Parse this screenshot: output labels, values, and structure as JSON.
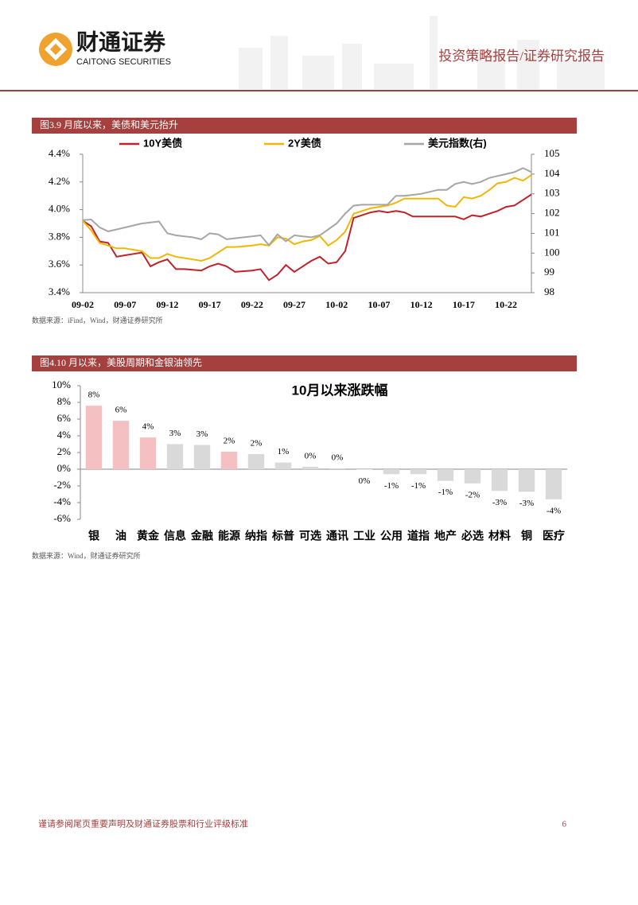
{
  "header": {
    "logo_cn": "财通证券",
    "logo_en": "CAITONG SECURITIES",
    "report_type": "投资策略报告/证券研究报告"
  },
  "figures": [
    {
      "caption": "图3.9 月底以来，美债和美元抬升",
      "source": "数据来源：iFind，Wind，财通证券研究所"
    },
    {
      "caption": "图4.10 月以来，美股周期和金银油领先",
      "source": "数据来源：Wind，财通证券研究所"
    }
  ],
  "chart_data": [
    {
      "type": "line",
      "categories": [
        "09-02",
        null,
        null,
        null,
        null,
        "09-07",
        null,
        null,
        null,
        null,
        "09-12",
        null,
        null,
        null,
        null,
        "09-17",
        null,
        null,
        null,
        null,
        "09-22",
        null,
        null,
        null,
        null,
        "09-27",
        null,
        null,
        null,
        null,
        "10-02",
        null,
        null,
        null,
        null,
        "10-07",
        null,
        null,
        null,
        null,
        "10-12",
        null,
        null,
        null,
        null,
        "10-17",
        null,
        null,
        null,
        null,
        "10-22",
        null,
        null,
        null
      ],
      "series": [
        {
          "name": "10Y美债",
          "color": "#c0222a",
          "values": [
            3.92,
            3.88,
            3.77,
            3.76,
            3.66,
            3.67,
            3.68,
            3.69,
            3.59,
            3.62,
            3.64,
            3.57,
            3.57,
            3.565,
            3.56,
            3.59,
            3.61,
            3.59,
            3.55,
            3.555,
            3.56,
            3.57,
            3.49,
            3.53,
            3.6,
            3.55,
            3.59,
            3.63,
            3.66,
            3.61,
            3.62,
            3.7,
            3.94,
            3.96,
            3.98,
            3.99,
            3.98,
            3.99,
            3.98,
            3.95,
            3.95,
            3.95,
            3.95,
            3.95,
            3.95,
            3.93,
            3.96,
            3.95,
            3.97,
            3.99,
            4.02,
            4.03,
            4.07,
            4.11
          ]
        },
        {
          "name": "2Y美债",
          "color": "#f2b705",
          "values": [
            3.92,
            3.85,
            3.76,
            3.74,
            3.72,
            3.72,
            3.71,
            3.7,
            3.65,
            3.65,
            3.68,
            3.66,
            3.65,
            3.64,
            3.63,
            3.65,
            3.69,
            3.73,
            3.73,
            3.735,
            3.74,
            3.75,
            3.74,
            3.8,
            3.79,
            3.75,
            3.77,
            3.78,
            3.81,
            3.74,
            3.78,
            3.84,
            3.97,
            3.99,
            4.01,
            4.02,
            4.03,
            4.05,
            4.08,
            4.08,
            4.08,
            4.08,
            4.08,
            4.03,
            4.02,
            4.09,
            4.08,
            4.1,
            4.14,
            4.19,
            4.2,
            4.23,
            4.21,
            4.25
          ]
        },
        {
          "name": "美元指数(右)",
          "color": "#a6a6a6",
          "axis": "y2",
          "values": [
            101.67,
            101.7,
            101.3,
            101.1,
            101.2,
            101.3,
            101.4,
            101.5,
            101.55,
            101.6,
            101.0,
            100.9,
            100.85,
            100.8,
            100.7,
            101.0,
            100.95,
            100.7,
            100.75,
            100.8,
            100.85,
            100.9,
            100.4,
            100.95,
            100.6,
            100.9,
            100.85,
            100.8,
            100.9,
            101.2,
            101.5,
            102.0,
            102.4,
            102.45,
            102.45,
            102.45,
            102.45,
            102.9,
            102.9,
            102.95,
            103.0,
            103.1,
            103.2,
            103.2,
            103.5,
            103.6,
            103.5,
            103.6,
            103.8,
            103.9,
            104.0,
            104.1,
            104.3,
            104.1
          ]
        }
      ],
      "ylim": [
        3.4,
        4.4
      ],
      "yticks": [
        {
          "value": 3.4,
          "label": "3.4%"
        },
        {
          "value": 3.6,
          "label": "3.6%"
        },
        {
          "value": 3.8,
          "label": "3.8%"
        },
        {
          "value": 4.0,
          "label": "4.0%"
        },
        {
          "value": 4.2,
          "label": "4.2%"
        },
        {
          "value": 4.4,
          "label": "4.4%"
        }
      ],
      "y2lim": [
        98,
        105
      ],
      "y2ticks": [
        98,
        99,
        100,
        101,
        102,
        103,
        104,
        105
      ]
    },
    {
      "type": "bar",
      "title": "10月以来涨跌幅",
      "categories": [
        "银",
        "油",
        "黄金",
        "信息",
        "金融",
        "能源",
        "纳指",
        "标普",
        "可选",
        "通讯",
        "工业",
        "公用",
        "道指",
        "地产",
        "必选",
        "材料",
        "铜",
        "医疗"
      ],
      "values": [
        7.6,
        5.8,
        3.8,
        3.0,
        2.9,
        2.1,
        1.8,
        0.8,
        0.3,
        0.1,
        -0.05,
        -0.6,
        -0.6,
        -1.4,
        -1.7,
        -2.6,
        -2.7,
        -3.6
      ],
      "value_labels": [
        "8%",
        "6%",
        "4%",
        "3%",
        "3%",
        "2%",
        "2%",
        "1%",
        "0%",
        "0%",
        "0%",
        "-1%",
        "-1%",
        "-1%",
        "-2%",
        "-3%",
        "-3%",
        "-4%"
      ],
      "colors": [
        "#f4c0c1",
        "#f4c0c1",
        "#f4c0c1",
        "#d9d9d9",
        "#d9d9d9",
        "#f4c0c1",
        "#d9d9d9",
        "#d9d9d9",
        "#d9d9d9",
        "#d9d9d9",
        "#d9d9d9",
        "#d9d9d9",
        "#d9d9d9",
        "#d9d9d9",
        "#d9d9d9",
        "#d9d9d9",
        "#d9d9d9",
        "#d9d9d9"
      ],
      "ylim": [
        -6,
        10
      ],
      "yticks": [
        {
          "value": -6,
          "label": "-6%"
        },
        {
          "value": -4,
          "label": "-4%"
        },
        {
          "value": -2,
          "label": "-2%"
        },
        {
          "value": 0,
          "label": "0%"
        },
        {
          "value": 2,
          "label": "2%"
        },
        {
          "value": 4,
          "label": "4%"
        },
        {
          "value": 6,
          "label": "6%"
        },
        {
          "value": 8,
          "label": "8%"
        },
        {
          "value": 10,
          "label": "10%"
        }
      ]
    }
  ],
  "footer": {
    "disclaimer": "谨请参阅尾页重要声明及财通证券股票和行业评级标准",
    "page": 6
  }
}
